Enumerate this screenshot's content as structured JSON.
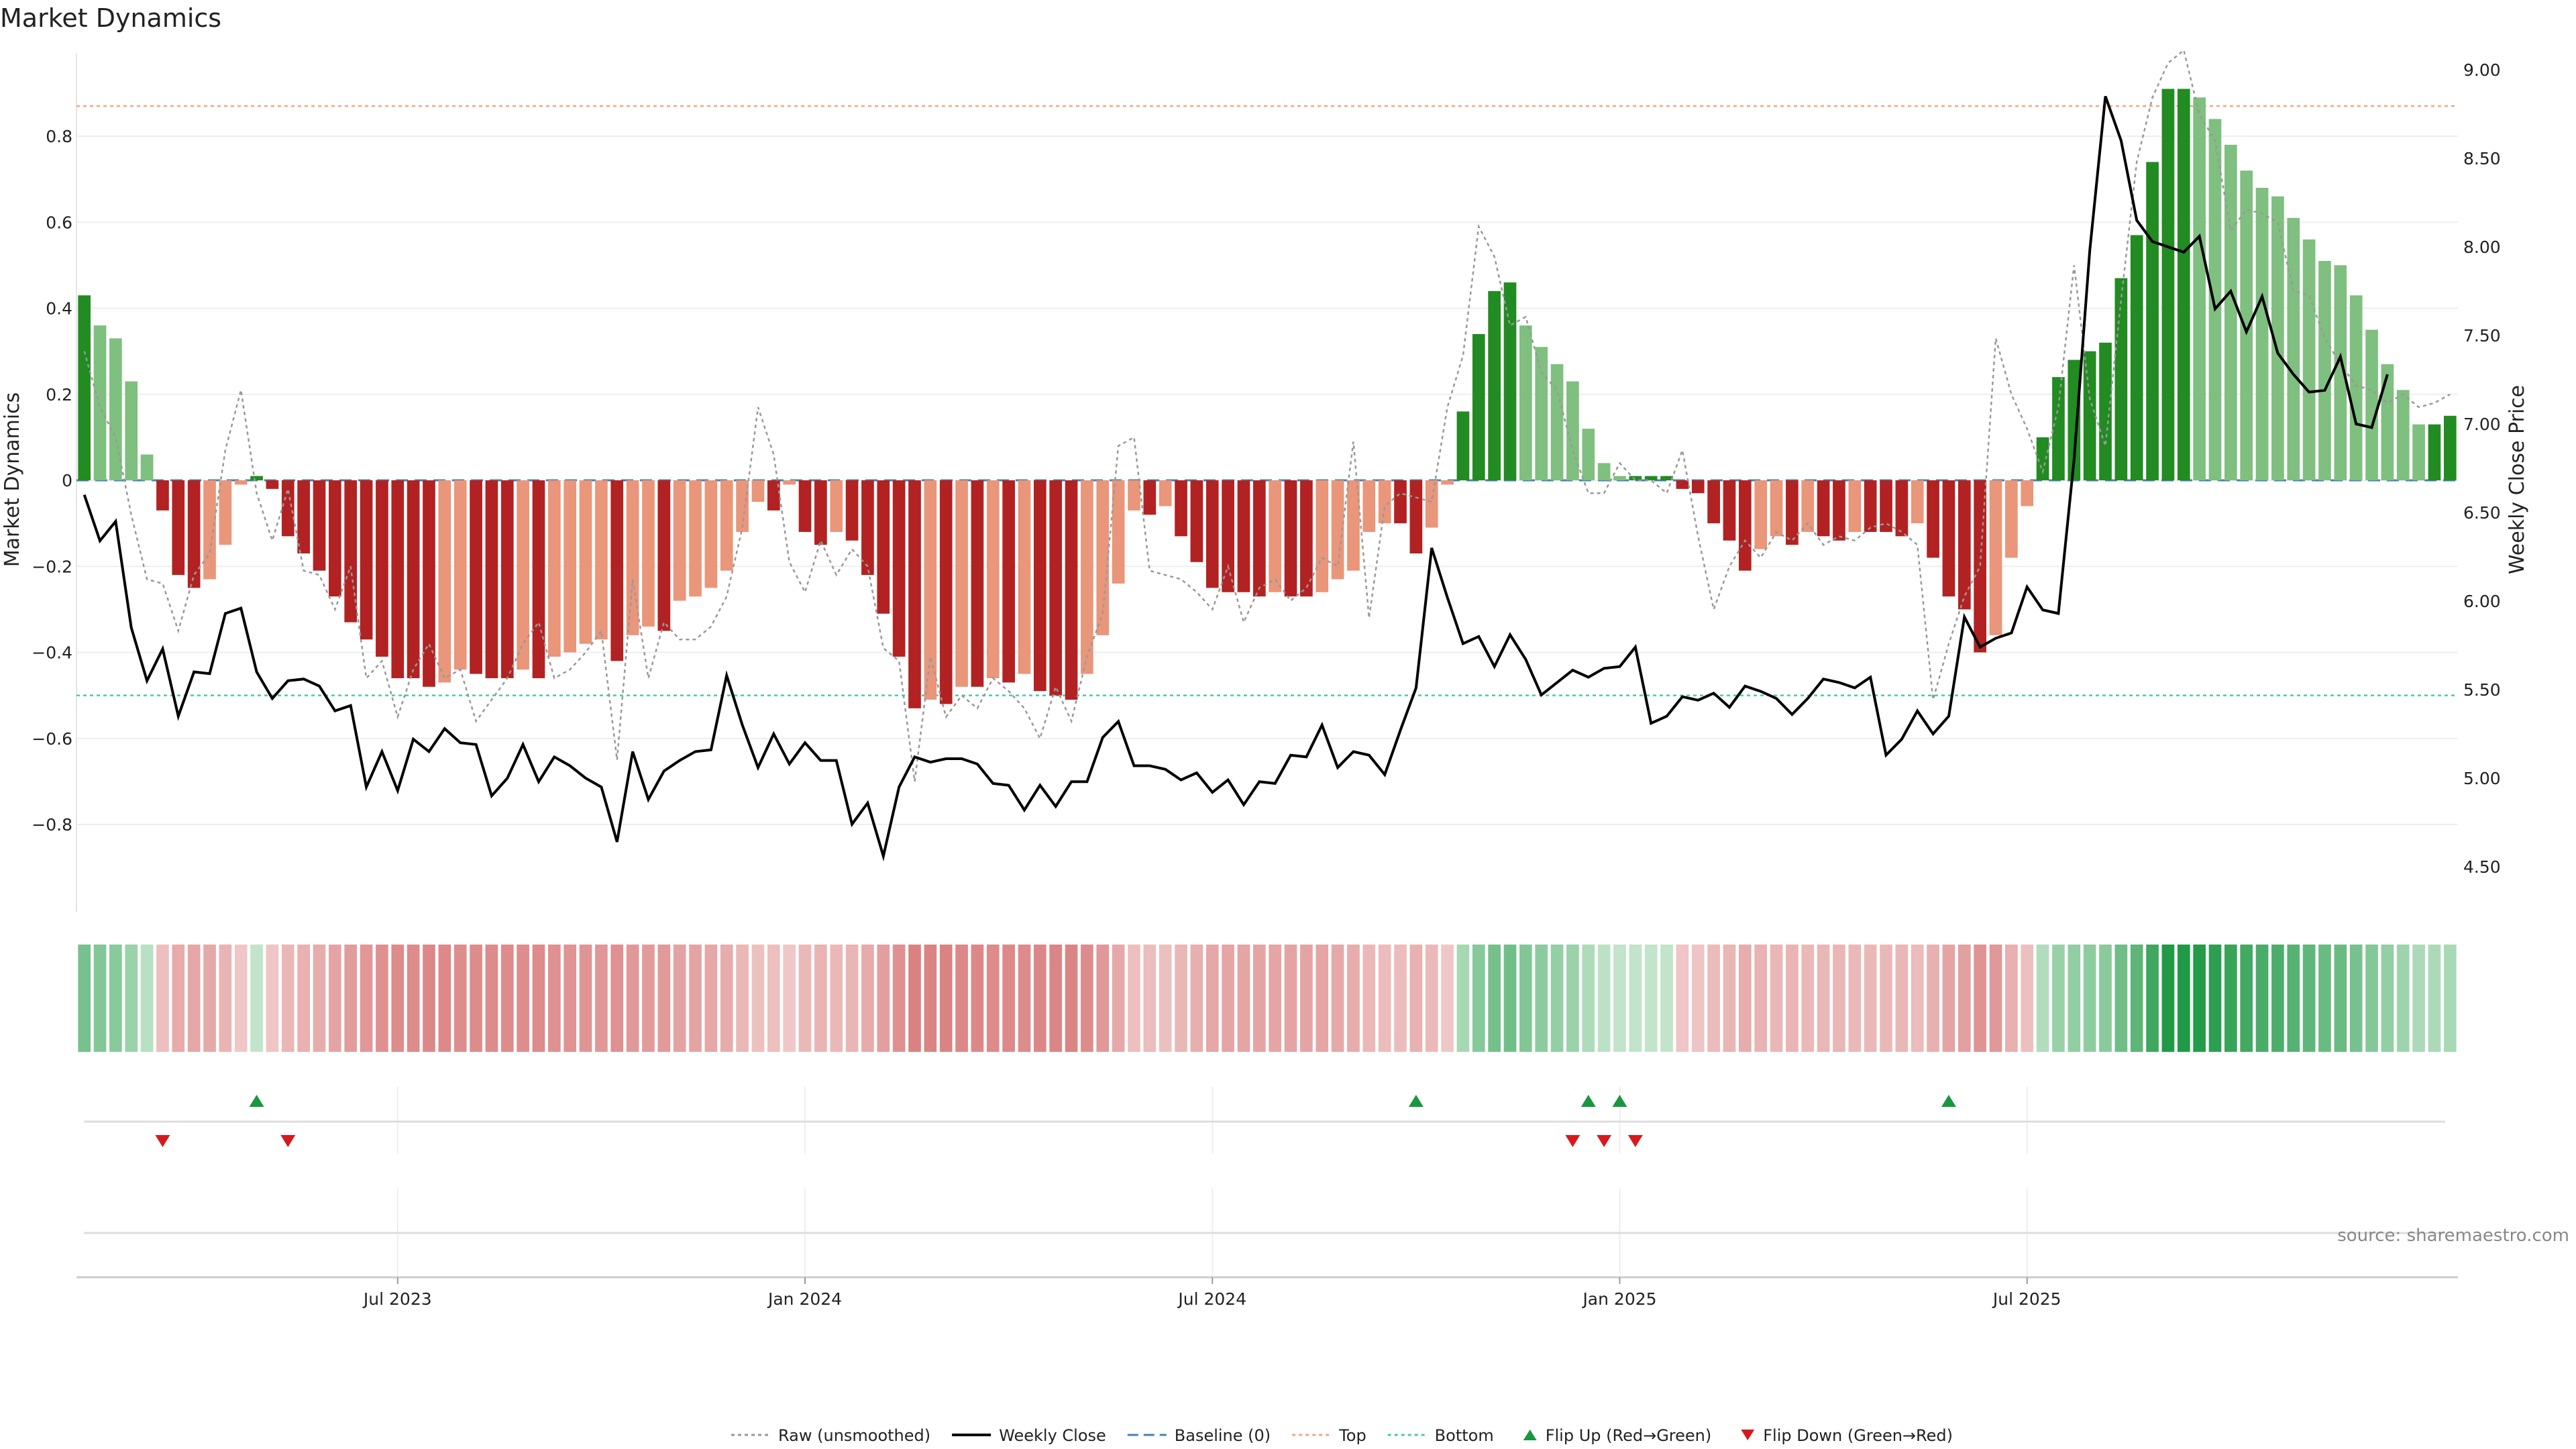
{
  "chart_data": {
    "type": "bar",
    "title": "Market Dynamics",
    "ylabel": "Market Dynamics",
    "y2label": "Weekly Close Price",
    "ylim": [
      -1.0,
      1.0
    ],
    "y2lim": [
      4.2,
      9.1
    ],
    "yticks": [
      0.8,
      0.6,
      0.4,
      0.2,
      0,
      -0.2,
      -0.4,
      -0.6,
      -0.8
    ],
    "ytick_labels": [
      "0.8",
      "0.6",
      "0.4",
      "0.2",
      "0",
      "−0.2",
      "−0.4",
      "−0.6",
      "−0.8"
    ],
    "y2ticks": [
      9.0,
      8.5,
      8.0,
      7.5,
      7.0,
      6.5,
      6.0,
      5.5,
      5.0,
      4.5
    ],
    "y2tick_labels": [
      "9.00",
      "8.50",
      "8.00",
      "7.50",
      "7.00",
      "6.50",
      "6.00",
      "5.50",
      "5.00",
      "4.50"
    ],
    "xticks": [
      {
        "week": 20,
        "label": "Jul 2023"
      },
      {
        "week": 46,
        "label": "Jan 2024"
      },
      {
        "week": 72,
        "label": "Jul 2024"
      },
      {
        "week": 98,
        "label": "Jan 2025"
      },
      {
        "week": 124,
        "label": "Jul 2025"
      }
    ],
    "top_threshold": 0.87,
    "bottom_threshold": -0.5,
    "baseline": 0,
    "grid": true,
    "legend_position": "bottom",
    "series": [
      {
        "name": "Market Dynamics",
        "kind": "bar",
        "values": [
          0.43,
          0.36,
          0.33,
          0.23,
          0.06,
          -0.07,
          -0.22,
          -0.25,
          -0.23,
          -0.15,
          -0.01,
          0.01,
          -0.02,
          -0.13,
          -0.17,
          -0.21,
          -0.27,
          -0.33,
          -0.37,
          -0.41,
          -0.46,
          -0.46,
          -0.48,
          -0.47,
          -0.44,
          -0.45,
          -0.46,
          -0.46,
          -0.44,
          -0.46,
          -0.41,
          -0.4,
          -0.38,
          -0.37,
          -0.42,
          -0.36,
          -0.34,
          -0.35,
          -0.28,
          -0.27,
          -0.25,
          -0.21,
          -0.12,
          -0.05,
          -0.07,
          -0.01,
          -0.12,
          -0.15,
          -0.12,
          -0.14,
          -0.22,
          -0.31,
          -0.41,
          -0.53,
          -0.51,
          -0.52,
          -0.48,
          -0.48,
          -0.46,
          -0.47,
          -0.45,
          -0.49,
          -0.5,
          -0.51,
          -0.45,
          -0.36,
          -0.24,
          -0.07,
          -0.08,
          -0.06,
          -0.13,
          -0.19,
          -0.25,
          -0.26,
          -0.26,
          -0.27,
          -0.26,
          -0.27,
          -0.27,
          -0.26,
          -0.23,
          -0.21,
          -0.12,
          -0.1,
          -0.1,
          -0.17,
          -0.11,
          -0.01,
          0.16,
          0.34,
          0.44,
          0.46,
          0.36,
          0.31,
          0.27,
          0.23,
          0.12,
          0.04,
          0.01,
          0.01,
          0.01,
          0.01,
          -0.02,
          -0.03,
          -0.1,
          -0.14,
          -0.21,
          -0.16,
          -0.13,
          -0.15,
          -0.12,
          -0.13,
          -0.14,
          -0.12,
          -0.12,
          -0.12,
          -0.13,
          -0.1,
          -0.18,
          -0.27,
          -0.3,
          -0.4,
          -0.36,
          -0.18,
          -0.06,
          0.1,
          0.24,
          0.28,
          0.3,
          0.32,
          0.47,
          0.57,
          0.74,
          0.91,
          0.91,
          0.89,
          0.84,
          0.78,
          0.72,
          0.68,
          0.66,
          0.61,
          0.56,
          0.51,
          0.5,
          0.43,
          0.35,
          0.27,
          0.21,
          0.13,
          0.13,
          0.15
        ],
        "colors": {
          "strong_pos": "#228b22",
          "weak_pos": "#7fbf7f",
          "strong_neg": "#b22222",
          "weak_neg": "#e9967a"
        }
      },
      {
        "name": "Raw (unsmoothed)",
        "kind": "line",
        "style": "dotted",
        "color": "#999999",
        "values": [
          0.3,
          0.17,
          0.1,
          -0.08,
          -0.23,
          -0.24,
          -0.35,
          -0.22,
          -0.17,
          0.07,
          0.21,
          -0.03,
          -0.14,
          -0.02,
          -0.21,
          -0.22,
          -0.3,
          -0.2,
          -0.46,
          -0.42,
          -0.55,
          -0.44,
          -0.38,
          -0.46,
          -0.44,
          -0.56,
          -0.51,
          -0.46,
          -0.38,
          -0.33,
          -0.46,
          -0.44,
          -0.4,
          -0.35,
          -0.65,
          -0.23,
          -0.46,
          -0.33,
          -0.37,
          -0.37,
          -0.34,
          -0.27,
          -0.11,
          0.17,
          0.06,
          -0.19,
          -0.26,
          -0.14,
          -0.22,
          -0.16,
          -0.2,
          -0.39,
          -0.42,
          -0.7,
          -0.41,
          -0.55,
          -0.5,
          -0.53,
          -0.46,
          -0.49,
          -0.53,
          -0.6,
          -0.48,
          -0.56,
          -0.41,
          -0.31,
          0.08,
          0.1,
          -0.21,
          -0.22,
          -0.23,
          -0.26,
          -0.3,
          -0.2,
          -0.33,
          -0.25,
          -0.23,
          -0.28,
          -0.25,
          -0.18,
          -0.2,
          0.09,
          -0.32,
          -0.06,
          -0.03,
          -0.04,
          -0.05,
          0.17,
          0.29,
          0.59,
          0.52,
          0.36,
          0.38,
          0.25,
          0.21,
          0.07,
          -0.03,
          -0.03,
          0.04,
          0.0,
          0.0,
          -0.03,
          0.07,
          -0.13,
          -0.3,
          -0.2,
          -0.14,
          -0.18,
          -0.12,
          -0.14,
          -0.1,
          -0.15,
          -0.13,
          -0.14,
          -0.11,
          -0.1,
          -0.12,
          -0.15,
          -0.51,
          -0.38,
          -0.27,
          -0.2,
          0.33,
          0.2,
          0.12,
          0.02,
          0.17,
          0.5,
          0.19,
          0.08,
          0.42,
          0.74,
          0.89,
          0.97,
          1.0,
          0.85,
          0.79,
          0.58,
          0.63,
          0.62,
          0.6,
          0.44,
          0.43,
          0.33,
          0.27,
          0.22,
          0.21,
          0.18,
          0.2,
          0.17,
          0.18,
          0.2
        ]
      },
      {
        "name": "Weekly Close",
        "kind": "line",
        "axis": "right",
        "color": "#000000",
        "values": [
          6.6,
          6.34,
          6.45,
          5.85,
          5.55,
          5.73,
          5.35,
          5.6,
          5.59,
          5.93,
          5.96,
          5.6,
          5.45,
          5.55,
          5.56,
          5.52,
          5.38,
          5.41,
          4.95,
          5.15,
          4.93,
          5.22,
          5.15,
          5.28,
          5.2,
          5.19,
          4.9,
          5.0,
          5.19,
          4.98,
          5.12,
          5.07,
          5.0,
          4.95,
          4.64,
          5.15,
          4.88,
          5.04,
          5.1,
          5.15,
          5.16,
          5.58,
          5.3,
          5.06,
          5.25,
          5.08,
          5.2,
          5.1,
          5.1,
          4.74,
          4.86,
          4.56,
          4.95,
          5.12,
          5.09,
          5.11,
          5.11,
          5.08,
          4.97,
          4.96,
          4.82,
          4.96,
          4.84,
          4.98,
          4.98,
          5.23,
          5.32,
          5.07,
          5.07,
          5.05,
          4.99,
          5.03,
          4.92,
          4.99,
          4.85,
          4.98,
          4.97,
          5.13,
          5.12,
          5.3,
          5.06,
          5.15,
          5.13,
          5.02,
          5.27,
          5.51,
          6.3,
          6.02,
          5.76,
          5.8,
          5.63,
          5.81,
          5.67,
          5.47,
          5.54,
          5.61,
          5.57,
          5.62,
          5.63,
          5.74,
          5.31,
          5.35,
          5.46,
          5.44,
          5.48,
          5.4,
          5.52,
          5.49,
          5.45,
          5.36,
          5.45,
          5.56,
          5.54,
          5.51,
          5.57,
          5.13,
          5.22,
          5.38,
          5.25,
          5.35,
          5.91,
          5.74,
          5.79,
          5.82,
          6.08,
          5.95,
          5.93,
          6.8,
          7.98,
          8.85,
          8.6,
          8.15,
          8.03,
          8.0,
          7.97,
          8.06,
          7.65,
          7.75,
          7.52,
          7.72,
          7.4,
          7.28,
          7.18,
          7.19,
          7.38,
          7.0,
          6.98,
          7.28
        ]
      },
      {
        "name": "Baseline (0)",
        "kind": "hline",
        "style": "dashed",
        "color": "#4682b4"
      },
      {
        "name": "Top",
        "kind": "hline",
        "style": "dotted",
        "color": "#f4a582"
      },
      {
        "name": "Bottom",
        "kind": "hline",
        "style": "dotted",
        "color": "#48c9b0"
      },
      {
        "name": "Flip Up (Red→Green)",
        "kind": "marker",
        "symbol": "triangle-up",
        "color": "#1a9641",
        "weeks": [
          11,
          85,
          96,
          98,
          119
        ]
      },
      {
        "name": "Flip Down (Green→Red)",
        "kind": "marker",
        "symbol": "triangle-down",
        "color": "#d7191c",
        "weeks": [
          5,
          13,
          95,
          97,
          99
        ]
      }
    ]
  },
  "legend": [
    {
      "label": "Raw (unsmoothed)",
      "kind": "dotted",
      "color": "#999999"
    },
    {
      "label": "Weekly Close",
      "kind": "solid",
      "color": "#000000"
    },
    {
      "label": "Baseline (0)",
      "kind": "dashed",
      "color": "#4682b4"
    },
    {
      "label": "Top",
      "kind": "dotted",
      "color": "#f4a582"
    },
    {
      "label": "Bottom",
      "kind": "dotted",
      "color": "#48c9b0"
    },
    {
      "label": "Flip Up (Red→Green)",
      "kind": "tri-up",
      "color": "#1a9641"
    },
    {
      "label": "Flip Down (Green→Red)",
      "kind": "tri-down",
      "color": "#d7191c"
    }
  ],
  "source": "source: sharemaestro.com"
}
